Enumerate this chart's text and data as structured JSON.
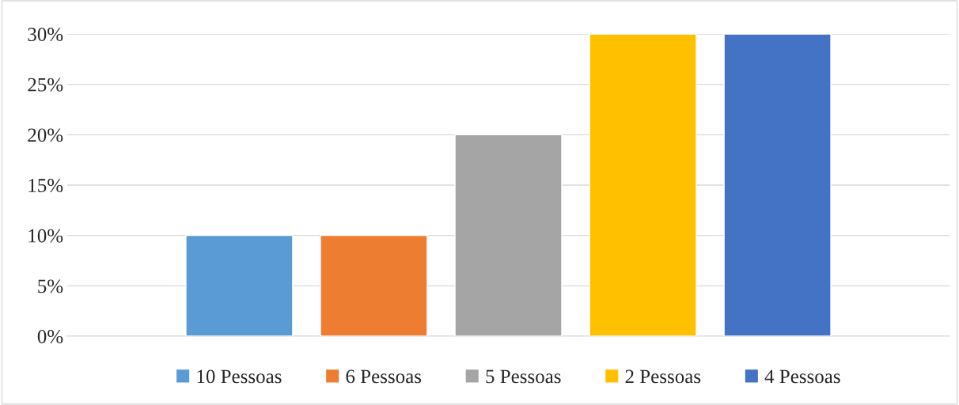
{
  "chart_data": {
    "type": "bar",
    "categories": [
      null
    ],
    "series": [
      {
        "name": "10 Pessoas",
        "color": "#5b9bd5",
        "values": [
          10
        ]
      },
      {
        "name": "6 Pessoas",
        "color": "#ed7d31",
        "values": [
          10
        ]
      },
      {
        "name": "5 Pessoas",
        "color": "#a5a5a5",
        "values": [
          20
        ]
      },
      {
        "name": "2 Pessoas",
        "color": "#ffc000",
        "values": [
          30
        ]
      },
      {
        "name": "4 Pessoas",
        "color": "#4472c4",
        "values": [
          30
        ]
      }
    ],
    "ylim": [
      0,
      30
    ],
    "yticks": [
      {
        "value": 0,
        "label": "0%"
      },
      {
        "value": 5,
        "label": "5%"
      },
      {
        "value": 10,
        "label": "10%"
      },
      {
        "value": 15,
        "label": "15%"
      },
      {
        "value": 20,
        "label": "20%"
      },
      {
        "value": 25,
        "label": "25%"
      },
      {
        "value": 30,
        "label": "30%"
      }
    ],
    "grid": "y",
    "legend": "bottom",
    "tick_labels": "y"
  }
}
